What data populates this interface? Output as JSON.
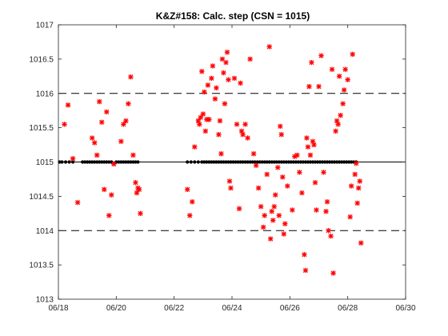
{
  "chart_data": {
    "type": "scatter",
    "title": "K&Z#158: Calc. step (CSN = 1015)",
    "xlabel": "",
    "ylabel": "",
    "x_tick_labels": [
      "06/18",
      "06/20",
      "06/22",
      "06/24",
      "06/26",
      "06/28",
      "06/30"
    ],
    "y_tick_labels": [
      "1013",
      "1013.5",
      "1014",
      "1014.5",
      "1015",
      "1015.5",
      "1016",
      "1016.5",
      "1017"
    ],
    "xlim": [
      "2015-06-18",
      "2015-06-30"
    ],
    "ylim": [
      1013,
      1017
    ],
    "grid": false,
    "legend": "none",
    "reference_lines": [
      {
        "style": "solid",
        "y": 1015,
        "color": "#000000"
      },
      {
        "style": "dashed",
        "y": 1016,
        "color": "#000000"
      },
      {
        "style": "dashed",
        "y": 1014,
        "color": "#000000"
      }
    ],
    "colors": {
      "steps": "#ff0000",
      "baseline_points": "#000000"
    },
    "series": [
      {
        "marker": "black-dot",
        "color": "#000000",
        "points": [
          {
            "x": "06/18 01:00",
            "y": 1015
          },
          {
            "x": "06/18 03:00",
            "y": 1015
          },
          {
            "x": "06/18 06:00",
            "y": 1015
          },
          {
            "x": "06/18 09:00",
            "y": 1015
          },
          {
            "x": "06/18 12:00",
            "y": 1015
          },
          {
            "x": "06/18 20:00",
            "y": 1015
          },
          {
            "x": "06/18 22:00",
            "y": 1015
          },
          {
            "x": "06/19 00:00",
            "y": 1015
          },
          {
            "x": "06/19 02:00",
            "y": 1015
          },
          {
            "x": "06/19 04:00",
            "y": 1015
          },
          {
            "x": "06/19 06:00",
            "y": 1015
          },
          {
            "x": "06/19 08:00",
            "y": 1015
          },
          {
            "x": "06/19 10:00",
            "y": 1015
          },
          {
            "x": "06/19 12:00",
            "y": 1015
          },
          {
            "x": "06/19 14:00",
            "y": 1015
          },
          {
            "x": "06/19 16:00",
            "y": 1015
          },
          {
            "x": "06/19 18:00",
            "y": 1015
          },
          {
            "x": "06/19 20:00",
            "y": 1015
          },
          {
            "x": "06/20 00:00",
            "y": 1015
          },
          {
            "x": "06/20 02:00",
            "y": 1015
          },
          {
            "x": "06/20 04:00",
            "y": 1015
          },
          {
            "x": "06/20 06:00",
            "y": 1015
          },
          {
            "x": "06/20 08:00",
            "y": 1015
          },
          {
            "x": "06/20 10:00",
            "y": 1015
          },
          {
            "x": "06/20 12:00",
            "y": 1015
          },
          {
            "x": "06/20 14:00",
            "y": 1015
          },
          {
            "x": "06/20 16:00",
            "y": 1015
          },
          {
            "x": "06/20 18:00",
            "y": 1015
          },
          {
            "x": "06/22 11:00",
            "y": 1015
          },
          {
            "x": "06/22 14:00",
            "y": 1015
          },
          {
            "x": "06/22 17:00",
            "y": 1015
          },
          {
            "x": "06/22 20:00",
            "y": 1015
          },
          {
            "x": "06/22 23:00",
            "y": 1015
          },
          {
            "x": "06/23 01:00",
            "y": 1015
          },
          {
            "x": "06/23 03:00",
            "y": 1015
          },
          {
            "x": "06/23 05:00",
            "y": 1015
          },
          {
            "x": "06/23 07:00",
            "y": 1015
          },
          {
            "x": "06/23 09:00",
            "y": 1015
          },
          {
            "x": "06/23 11:00",
            "y": 1015
          },
          {
            "x": "06/23 13:00",
            "y": 1015
          },
          {
            "x": "06/23 15:00",
            "y": 1015
          },
          {
            "x": "06/23 17:00",
            "y": 1015
          },
          {
            "x": "06/23 19:00",
            "y": 1015
          },
          {
            "x": "06/23 21:00",
            "y": 1015
          },
          {
            "x": "06/23 23:00",
            "y": 1015
          },
          {
            "x": "06/24 01:00",
            "y": 1015
          },
          {
            "x": "06/24 03:00",
            "y": 1015
          },
          {
            "x": "06/24 05:00",
            "y": 1015
          },
          {
            "x": "06/24 07:00",
            "y": 1015
          },
          {
            "x": "06/24 09:00",
            "y": 1015
          },
          {
            "x": "06/24 11:00",
            "y": 1015
          },
          {
            "x": "06/24 13:00",
            "y": 1015
          },
          {
            "x": "06/24 15:00",
            "y": 1015
          },
          {
            "x": "06/24 17:00",
            "y": 1015
          },
          {
            "x": "06/24 19:00",
            "y": 1015
          },
          {
            "x": "06/24 21:00",
            "y": 1015
          },
          {
            "x": "06/24 23:00",
            "y": 1015
          },
          {
            "x": "06/25 01:00",
            "y": 1015
          },
          {
            "x": "06/25 03:00",
            "y": 1015
          },
          {
            "x": "06/25 05:00",
            "y": 1015
          },
          {
            "x": "06/25 07:00",
            "y": 1015
          },
          {
            "x": "06/25 09:00",
            "y": 1015
          },
          {
            "x": "06/25 11:00",
            "y": 1015
          },
          {
            "x": "06/25 13:00",
            "y": 1015
          },
          {
            "x": "06/25 15:00",
            "y": 1015
          },
          {
            "x": "06/25 17:00",
            "y": 1015
          },
          {
            "x": "06/25 19:00",
            "y": 1015
          },
          {
            "x": "06/25 21:00",
            "y": 1015
          },
          {
            "x": "06/25 23:00",
            "y": 1015
          },
          {
            "x": "06/26 01:00",
            "y": 1015
          },
          {
            "x": "06/26 03:00",
            "y": 1015
          },
          {
            "x": "06/26 05:00",
            "y": 1015
          },
          {
            "x": "06/26 07:00",
            "y": 1015
          },
          {
            "x": "06/26 09:00",
            "y": 1015
          },
          {
            "x": "06/26 11:00",
            "y": 1015
          },
          {
            "x": "06/26 13:00",
            "y": 1015
          },
          {
            "x": "06/26 15:00",
            "y": 1015
          },
          {
            "x": "06/26 17:00",
            "y": 1015
          },
          {
            "x": "06/26 19:00",
            "y": 1015
          },
          {
            "x": "06/26 21:00",
            "y": 1015
          },
          {
            "x": "06/26 23:00",
            "y": 1015
          },
          {
            "x": "06/27 01:00",
            "y": 1015
          },
          {
            "x": "06/27 03:00",
            "y": 1015
          },
          {
            "x": "06/27 05:00",
            "y": 1015
          },
          {
            "x": "06/27 07:00",
            "y": 1015
          },
          {
            "x": "06/27 09:00",
            "y": 1015
          },
          {
            "x": "06/27 11:00",
            "y": 1015
          },
          {
            "x": "06/27 13:00",
            "y": 1015
          },
          {
            "x": "06/27 15:00",
            "y": 1015
          },
          {
            "x": "06/27 17:00",
            "y": 1015
          },
          {
            "x": "06/27 19:00",
            "y": 1015
          },
          {
            "x": "06/27 21:00",
            "y": 1015
          },
          {
            "x": "06/27 23:00",
            "y": 1015
          },
          {
            "x": "06/28 01:00",
            "y": 1015
          },
          {
            "x": "06/28 03:00",
            "y": 1015
          },
          {
            "x": "06/28 05:00",
            "y": 1015
          },
          {
            "x": "06/28 07:00",
            "y": 1015
          }
        ]
      },
      {
        "marker": "red-star",
        "color": "#ff0000",
        "points": [
          {
            "x": "06/18 05:00",
            "y": 1015.55
          },
          {
            "x": "06/18 08:00",
            "y": 1015.83
          },
          {
            "x": "06/18 12:00",
            "y": 1015.05
          },
          {
            "x": "06/18 16:00",
            "y": 1014.41
          },
          {
            "x": "06/19 04:00",
            "y": 1015.35
          },
          {
            "x": "06/19 06:00",
            "y": 1015.28
          },
          {
            "x": "06/19 08:00",
            "y": 1015.1
          },
          {
            "x": "06/19 10:00",
            "y": 1015.88
          },
          {
            "x": "06/19 12:00",
            "y": 1015.58
          },
          {
            "x": "06/19 14:00",
            "y": 1014.6
          },
          {
            "x": "06/19 16:00",
            "y": 1015.73
          },
          {
            "x": "06/19 18:00",
            "y": 1014.22
          },
          {
            "x": "06/19 20:00",
            "y": 1014.52
          },
          {
            "x": "06/19 22:00",
            "y": 1014.97
          },
          {
            "x": "06/20 04:00",
            "y": 1015.3
          },
          {
            "x": "06/20 06:00",
            "y": 1015.55
          },
          {
            "x": "06/20 08:00",
            "y": 1015.6
          },
          {
            "x": "06/20 10:00",
            "y": 1015.85
          },
          {
            "x": "06/20 12:00",
            "y": 1016.24
          },
          {
            "x": "06/20 14:00",
            "y": 1015.1
          },
          {
            "x": "06/20 16:00",
            "y": 1014.7
          },
          {
            "x": "06/20 17:00",
            "y": 1014.55
          },
          {
            "x": "06/20 18:00",
            "y": 1014.62
          },
          {
            "x": "06/20 19:00",
            "y": 1014.6
          },
          {
            "x": "06/20 20:00",
            "y": 1014.25
          },
          {
            "x": "06/22 11:00",
            "y": 1014.6
          },
          {
            "x": "06/22 13:00",
            "y": 1014.22
          },
          {
            "x": "06/22 15:00",
            "y": 1014.42
          },
          {
            "x": "06/22 17:00",
            "y": 1015.22
          },
          {
            "x": "06/22 20:00",
            "y": 1015.6
          },
          {
            "x": "06/22 21:00",
            "y": 1015.55
          },
          {
            "x": "06/22 22:00",
            "y": 1015.65
          },
          {
            "x": "06/22 23:00",
            "y": 1016.32
          },
          {
            "x": "06/23 00:00",
            "y": 1015.7
          },
          {
            "x": "06/23 01:00",
            "y": 1016.02
          },
          {
            "x": "06/23 02:00",
            "y": 1015.45
          },
          {
            "x": "06/23 03:00",
            "y": 1015.62
          },
          {
            "x": "06/23 04:00",
            "y": 1016.12
          },
          {
            "x": "06/23 05:00",
            "y": 1015.62
          },
          {
            "x": "06/23 07:00",
            "y": 1016.22
          },
          {
            "x": "06/23 08:00",
            "y": 1016.4
          },
          {
            "x": "06/23 10:00",
            "y": 1015.92
          },
          {
            "x": "06/23 11:00",
            "y": 1016.08
          },
          {
            "x": "06/23 13:00",
            "y": 1015.4
          },
          {
            "x": "06/23 14:00",
            "y": 1015.6
          },
          {
            "x": "06/23 15:00",
            "y": 1015.12
          },
          {
            "x": "06/23 16:00",
            "y": 1016.5
          },
          {
            "x": "06/23 17:00",
            "y": 1016.3
          },
          {
            "x": "06/23 18:00",
            "y": 1015.85
          },
          {
            "x": "06/23 19:00",
            "y": 1016.45
          },
          {
            "x": "06/23 20:00",
            "y": 1016.6
          },
          {
            "x": "06/23 21:00",
            "y": 1016.2
          },
          {
            "x": "06/23 22:00",
            "y": 1014.72
          },
          {
            "x": "06/23 23:00",
            "y": 1014.62
          },
          {
            "x": "06/24 02:00",
            "y": 1016.22
          },
          {
            "x": "06/24 04:00",
            "y": 1015.55
          },
          {
            "x": "06/24 06:00",
            "y": 1014.32
          },
          {
            "x": "06/24 07:00",
            "y": 1016.15
          },
          {
            "x": "06/24 08:00",
            "y": 1015.45
          },
          {
            "x": "06/24 09:00",
            "y": 1015.4
          },
          {
            "x": "06/24 11:00",
            "y": 1015.55
          },
          {
            "x": "06/24 13:00",
            "y": 1015.35
          },
          {
            "x": "06/24 15:00",
            "y": 1016.5
          },
          {
            "x": "06/24 18:00",
            "y": 1015.12
          },
          {
            "x": "06/24 20:00",
            "y": 1014.95
          },
          {
            "x": "06/24 22:00",
            "y": 1014.62
          },
          {
            "x": "06/25 00:00",
            "y": 1014.35
          },
          {
            "x": "06/25 02:00",
            "y": 1014.05
          },
          {
            "x": "06/25 03:00",
            "y": 1014.22
          },
          {
            "x": "06/25 05:00",
            "y": 1014.82
          },
          {
            "x": "06/25 07:00",
            "y": 1016.68
          },
          {
            "x": "06/25 08:00",
            "y": 1013.88
          },
          {
            "x": "06/25 09:00",
            "y": 1014.28
          },
          {
            "x": "06/25 10:00",
            "y": 1014.15
          },
          {
            "x": "06/25 11:00",
            "y": 1014.35
          },
          {
            "x": "06/25 12:00",
            "y": 1014.52
          },
          {
            "x": "06/25 14:00",
            "y": 1014.92
          },
          {
            "x": "06/25 15:00",
            "y": 1014.22
          },
          {
            "x": "06/25 16:00",
            "y": 1015.52
          },
          {
            "x": "06/25 17:00",
            "y": 1015.4
          },
          {
            "x": "06/25 18:00",
            "y": 1014.78
          },
          {
            "x": "06/25 19:00",
            "y": 1013.95
          },
          {
            "x": "06/25 20:00",
            "y": 1014.1
          },
          {
            "x": "06/25 22:00",
            "y": 1014.65
          },
          {
            "x": "06/26 02:00",
            "y": 1014.3
          },
          {
            "x": "06/26 04:00",
            "y": 1015.08
          },
          {
            "x": "06/26 06:00",
            "y": 1015.1
          },
          {
            "x": "06/26 08:00",
            "y": 1014.85
          },
          {
            "x": "06/26 10:00",
            "y": 1014.55
          },
          {
            "x": "06/26 12:00",
            "y": 1013.65
          },
          {
            "x": "06/26 13:00",
            "y": 1013.42
          },
          {
            "x": "06/26 14:00",
            "y": 1015.35
          },
          {
            "x": "06/26 15:00",
            "y": 1015.22
          },
          {
            "x": "06/26 16:00",
            "y": 1016.1
          },
          {
            "x": "06/26 17:00",
            "y": 1015.1
          },
          {
            "x": "06/26 18:00",
            "y": 1016.45
          },
          {
            "x": "06/26 19:00",
            "y": 1015.3
          },
          {
            "x": "06/26 20:00",
            "y": 1015.25
          },
          {
            "x": "06/26 21:00",
            "y": 1014.7
          },
          {
            "x": "06/26 22:00",
            "y": 1014.3
          },
          {
            "x": "06/27 00:00",
            "y": 1016.1
          },
          {
            "x": "06/27 02:00",
            "y": 1016.55
          },
          {
            "x": "06/27 04:00",
            "y": 1014.85
          },
          {
            "x": "06/27 06:00",
            "y": 1014.28
          },
          {
            "x": "06/27 07:00",
            "y": 1014.42
          },
          {
            "x": "06/27 08:00",
            "y": 1014.0
          },
          {
            "x": "06/27 10:00",
            "y": 1013.92
          },
          {
            "x": "06/27 11:00",
            "y": 1016.35
          },
          {
            "x": "06/27 12:00",
            "y": 1013.38
          },
          {
            "x": "06/27 14:00",
            "y": 1015.45
          },
          {
            "x": "06/27 15:00",
            "y": 1015.6
          },
          {
            "x": "06/27 16:00",
            "y": 1015.55
          },
          {
            "x": "06/27 17:00",
            "y": 1016.25
          },
          {
            "x": "06/27 18:00",
            "y": 1015.68
          },
          {
            "x": "06/27 20:00",
            "y": 1015.85
          },
          {
            "x": "06/27 21:00",
            "y": 1016.05
          },
          {
            "x": "06/27 22:00",
            "y": 1016.35
          },
          {
            "x": "06/28 00:00",
            "y": 1016.2
          },
          {
            "x": "06/28 02:00",
            "y": 1014.2
          },
          {
            "x": "06/28 03:00",
            "y": 1014.65
          },
          {
            "x": "06/28 04:00",
            "y": 1016.57
          },
          {
            "x": "06/28 06:00",
            "y": 1014.82
          },
          {
            "x": "06/28 07:00",
            "y": 1014.98
          },
          {
            "x": "06/28 08:00",
            "y": 1014.4
          },
          {
            "x": "06/28 09:00",
            "y": 1014.62
          },
          {
            "x": "06/28 10:00",
            "y": 1014.72
          },
          {
            "x": "06/28 11:00",
            "y": 1013.82
          }
        ]
      }
    ]
  }
}
